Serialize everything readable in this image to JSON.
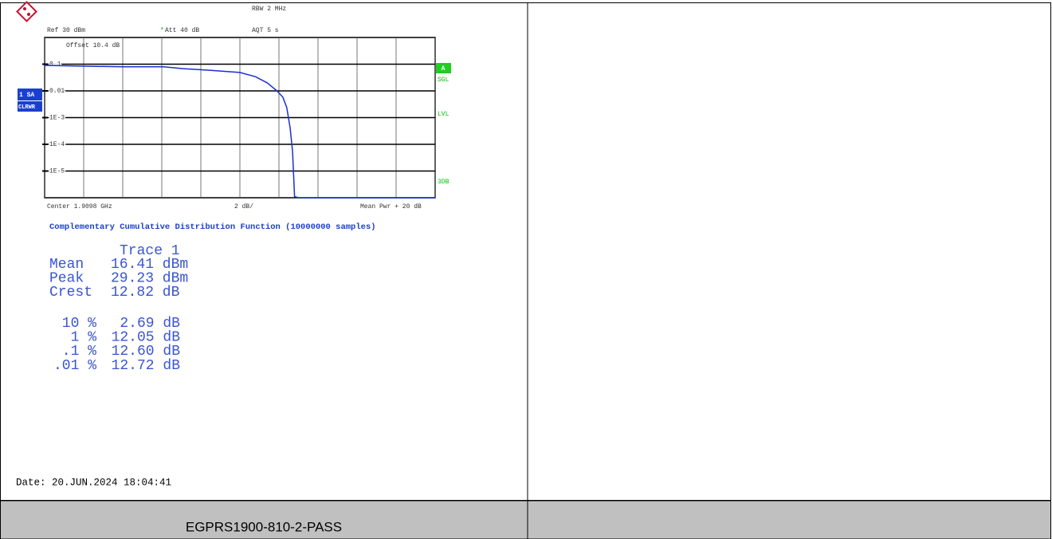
{
  "chart_data": {
    "type": "line",
    "title": "Complementary Cumulative Distribution Function (10000000 samples)",
    "annotations": {
      "rbw": "RBW 2 MHz",
      "ref": "Ref 30 dBm",
      "star": "*",
      "att": "Att 40 dB",
      "aqt": "AQT 5 s",
      "offset": "Offset 10.4 dB",
      "sa": "1 SA",
      "clrwr": "CLRWR",
      "a": "A",
      "sgl": "SGL",
      "lvl": "LVL",
      "db3": "3DB",
      "center": "Center 1.9098 GHz",
      "div": "2 dB/",
      "right": "Mean Pwr + 20 dB"
    },
    "x": [
      0,
      1.8,
      4,
      6.1,
      7.1,
      8.3,
      10,
      10.8,
      11.4,
      11.9,
      12.2,
      12.4,
      12.57,
      12.7,
      12.8,
      13,
      20
    ],
    "series": [
      {
        "name": "Trace 1",
        "color": "#1a2fd0",
        "values": [
          0.09,
          0.085,
          0.08,
          0.08,
          0.068,
          0.06,
          0.049,
          0.034,
          0.02,
          0.01,
          0.0058,
          0.0024,
          0.00042,
          5.4e-05,
          1.1e-06,
          1e-06,
          1e-06
        ]
      }
    ],
    "xlim": [
      0,
      20
    ],
    "xticks": [
      0,
      2,
      4,
      6,
      8,
      10,
      12,
      14,
      16,
      18,
      20
    ],
    "ylim": [
      1e-06,
      1
    ],
    "yticks": [
      0.1,
      0.01,
      {
        "value": 0.001,
        "label": "1E-3"
      },
      {
        "value": 0.0001,
        "label": "1E-4"
      },
      {
        "value": 1e-05,
        "label": "1E-5"
      }
    ],
    "log_y": true,
    "grid": true
  },
  "results": {
    "header": "Trace 1",
    "rows": [
      [
        "Mean",
        "16.41 dBm"
      ],
      [
        "Peak",
        "29.23 dBm"
      ],
      [
        "Crest",
        "12.82 dB"
      ]
    ],
    "percent_rows": [
      [
        "10 %",
        "2.69 dB"
      ],
      [
        "1 %",
        "12.05 dB"
      ],
      [
        ".1 %",
        "12.60 dB"
      ],
      [
        ".01 %",
        "12.72 dB"
      ]
    ]
  },
  "date": "Date: 20.JUN.2024 18:04:41",
  "caption": "EGPRS1900-810-2-PASS"
}
